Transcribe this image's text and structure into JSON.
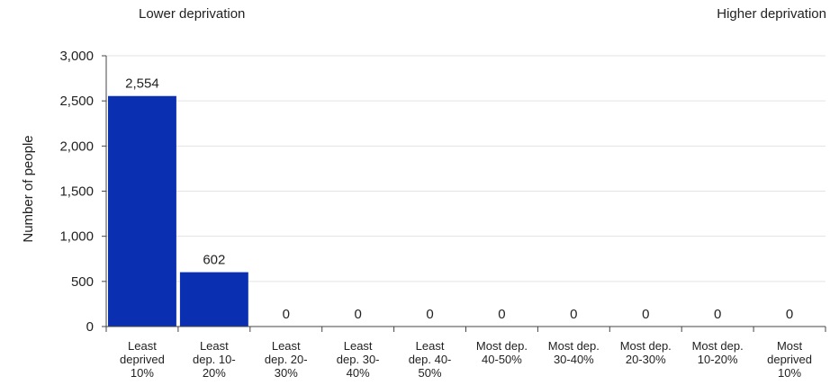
{
  "annotations": {
    "lower": "Lower deprivation",
    "higher": "Higher deprivation"
  },
  "chart_data": {
    "type": "bar",
    "title": "",
    "xlabel": "",
    "ylabel": "Number of people",
    "ylim": [
      0,
      3000
    ],
    "yticks": [
      "0",
      "500",
      "1,000",
      "1,500",
      "2,000",
      "2,500",
      "3,000"
    ],
    "ytick_values": [
      0,
      500,
      1000,
      1500,
      2000,
      2500,
      3000
    ],
    "grid": true,
    "bar_color": "#0a2fb0",
    "grid_color": "#e3e3e3",
    "categories": [
      [
        "Least",
        "deprived",
        "10%"
      ],
      [
        "Least",
        "dep. 10-",
        "20%"
      ],
      [
        "Least",
        "dep. 20-",
        "30%"
      ],
      [
        "Least",
        "dep. 30-",
        "40%"
      ],
      [
        "Least",
        "dep. 40-",
        "50%"
      ],
      [
        "Most dep.",
        "40-50%"
      ],
      [
        "Most dep.",
        "30-40%"
      ],
      [
        "Most dep.",
        "20-30%"
      ],
      [
        "Most dep.",
        "10-20%"
      ],
      [
        "Most",
        "deprived",
        "10%"
      ]
    ],
    "values": [
      2554,
      602,
      0,
      0,
      0,
      0,
      0,
      0,
      0,
      0
    ],
    "value_labels": [
      "2,554",
      "602",
      "0",
      "0",
      "0",
      "0",
      "0",
      "0",
      "0",
      "0"
    ]
  }
}
